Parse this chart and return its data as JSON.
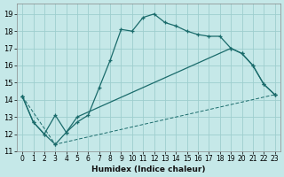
{
  "xlabel": "Humidex (Indice chaleur)",
  "bg_color": "#c5e8e8",
  "grid_color": "#9ecece",
  "line_color": "#1a6b6b",
  "xlim": [
    -0.5,
    23.5
  ],
  "ylim": [
    11,
    19.6
  ],
  "yticks": [
    11,
    12,
    13,
    14,
    15,
    16,
    17,
    18,
    19
  ],
  "xticks": [
    0,
    1,
    2,
    3,
    4,
    5,
    6,
    7,
    8,
    9,
    10,
    11,
    12,
    13,
    14,
    15,
    16,
    17,
    18,
    19,
    20,
    21,
    22,
    23
  ],
  "line1_x": [
    0,
    1,
    2,
    3,
    4,
    5,
    6,
    7,
    8,
    9,
    10,
    11,
    12,
    13,
    14,
    15,
    16,
    17,
    18,
    19,
    20,
    21,
    22,
    23
  ],
  "line1_y": [
    14.2,
    12.7,
    12.0,
    11.4,
    12.1,
    12.7,
    13.1,
    14.7,
    16.3,
    18.1,
    18.0,
    18.8,
    19.0,
    18.5,
    18.3,
    18.0,
    17.8,
    17.7,
    17.7,
    17.0,
    16.7,
    16.0,
    14.9,
    14.3
  ],
  "line2_x": [
    0,
    1,
    2,
    3,
    4,
    5,
    19,
    20,
    21,
    22,
    23
  ],
  "line2_y": [
    14.2,
    12.7,
    12.0,
    13.1,
    12.1,
    13.0,
    17.0,
    16.7,
    16.0,
    14.9,
    14.3
  ],
  "line3_x": [
    0,
    3,
    23
  ],
  "line3_y": [
    14.2,
    11.4,
    14.3
  ]
}
